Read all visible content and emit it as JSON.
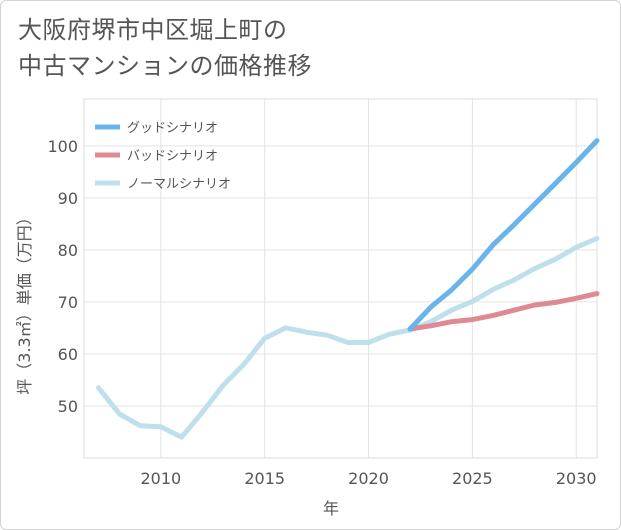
{
  "title_lines": [
    "大阪府堺市中区堀上町の",
    "中古マンションの価格推移"
  ],
  "chart_data": {
    "type": "line",
    "xlabel": "年",
    "ylabel": "坪（3.3㎡）単価（万円）",
    "xlim": [
      2006.3,
      2031
    ],
    "ylim": [
      40,
      109
    ],
    "xticks": [
      2010,
      2015,
      2020,
      2025,
      2030
    ],
    "yticks": [
      50,
      60,
      70,
      80,
      90,
      100
    ],
    "grid": true,
    "legend_position": "top-left",
    "series": [
      {
        "name": "グッドシナリオ",
        "color": "#6ab4ec",
        "x": [
          2022,
          2023,
          2024,
          2025,
          2026,
          2027,
          2028,
          2029,
          2030,
          2031
        ],
        "y": [
          64.8,
          69.0,
          72.3,
          76.3,
          81.0,
          84.8,
          88.8,
          92.8,
          96.8,
          101.0
        ]
      },
      {
        "name": "バッドシナリオ",
        "color": "#de8a92",
        "x": [
          2022,
          2023,
          2024,
          2025,
          2026,
          2027,
          2028,
          2029,
          2030,
          2031
        ],
        "y": [
          64.8,
          65.4,
          66.2,
          66.6,
          67.4,
          68.4,
          69.4,
          69.9,
          70.7,
          71.6
        ]
      },
      {
        "name": "ノーマルシナリオ",
        "color": "#bfdfed",
        "x": [
          2007,
          2008,
          2009,
          2010,
          2011,
          2012,
          2013,
          2014,
          2015,
          2016,
          2017,
          2018,
          2019,
          2020,
          2021,
          2022,
          2023,
          2024,
          2025,
          2026,
          2027,
          2028,
          2029,
          2030,
          2031
        ],
        "y": [
          53.5,
          48.5,
          46.2,
          46.0,
          44.0,
          48.8,
          54.0,
          58.0,
          63.0,
          65.0,
          64.2,
          63.6,
          62.2,
          62.2,
          63.8,
          64.6,
          66.2,
          68.4,
          70.1,
          72.4,
          74.2,
          76.4,
          78.2,
          80.5,
          82.2
        ]
      }
    ]
  }
}
